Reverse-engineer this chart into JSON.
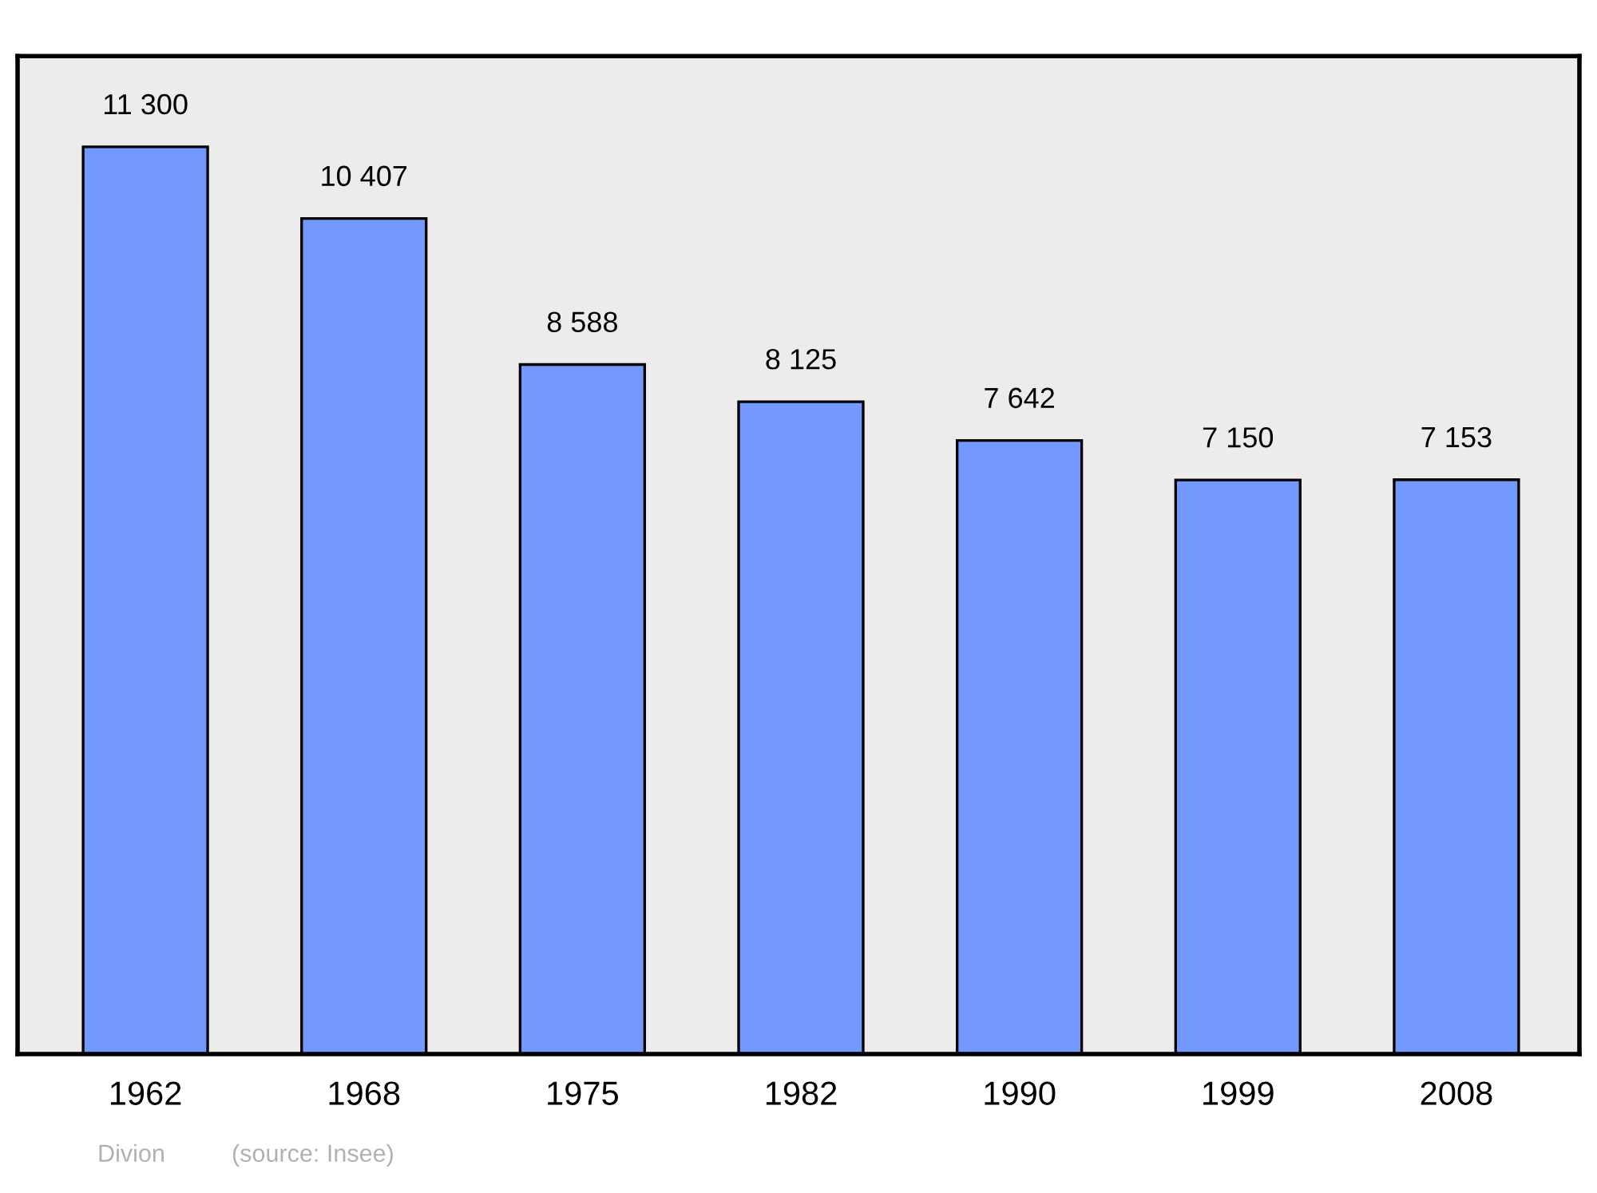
{
  "chart_data": {
    "type": "bar",
    "categories": [
      "1962",
      "1968",
      "1975",
      "1982",
      "1990",
      "1999",
      "2008"
    ],
    "values": [
      11300,
      10407,
      8588,
      8125,
      7642,
      7150,
      7153
    ],
    "value_labels": [
      "11 300",
      "10 407",
      "8 588",
      "8 125",
      "7 642",
      "7 150",
      "7 153"
    ],
    "color": "#7399ff",
    "grid": false,
    "legend": false,
    "tick_labels": "x",
    "annotations": [
      "Divion",
      "(source: Insee)"
    ]
  }
}
